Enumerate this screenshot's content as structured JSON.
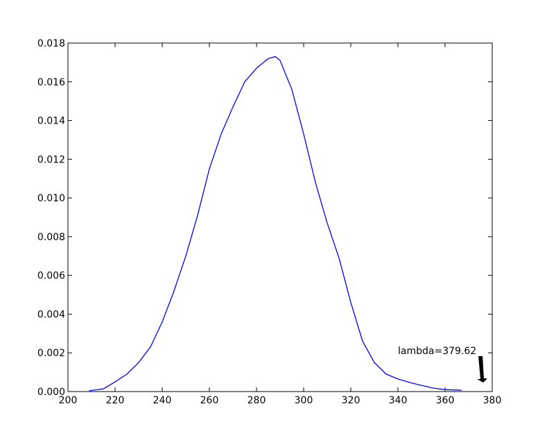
{
  "chart_data": {
    "type": "line",
    "x": [
      209,
      215,
      220,
      225,
      230,
      235,
      240,
      245,
      250,
      255,
      260,
      265,
      270,
      275,
      280,
      285,
      288,
      290,
      295,
      300,
      305,
      310,
      315,
      320,
      325,
      330,
      335,
      340,
      345,
      350,
      355,
      360,
      367
    ],
    "series": [
      {
        "color": "#0000ff",
        "values": [
          4e-05,
          0.00014,
          0.0005,
          0.0009,
          0.0015,
          0.0023,
          0.0036,
          0.0052,
          0.007,
          0.0091,
          0.0115,
          0.0133,
          0.0147,
          0.016,
          0.0167,
          0.0172,
          0.0173,
          0.0171,
          0.0156,
          0.0133,
          0.0108,
          0.0087,
          0.0069,
          0.0046,
          0.0026,
          0.0015,
          0.0009,
          0.00065,
          0.00047,
          0.00032,
          0.00018,
          0.0001,
          7e-05
        ]
      }
    ],
    "xlim": [
      200,
      380
    ],
    "xticks": [
      200,
      220,
      240,
      260,
      280,
      300,
      320,
      340,
      360,
      380
    ],
    "ylim": [
      0,
      0.018
    ],
    "yticks": [
      {
        "value": 0,
        "label": "0.000"
      },
      {
        "value": 0.002,
        "label": "0.002"
      },
      {
        "value": 0.004,
        "label": "0.004"
      },
      {
        "value": 0.006,
        "label": "0.006"
      },
      {
        "value": 0.008,
        "label": "0.008"
      },
      {
        "value": 0.01,
        "label": "0.010"
      },
      {
        "value": 0.012,
        "label": "0.012"
      },
      {
        "value": 0.014,
        "label": "0.014"
      },
      {
        "value": 0.016,
        "label": "0.016"
      },
      {
        "value": 0.018,
        "label": "0.018"
      }
    ],
    "annotation": "lambda=379.62"
  }
}
